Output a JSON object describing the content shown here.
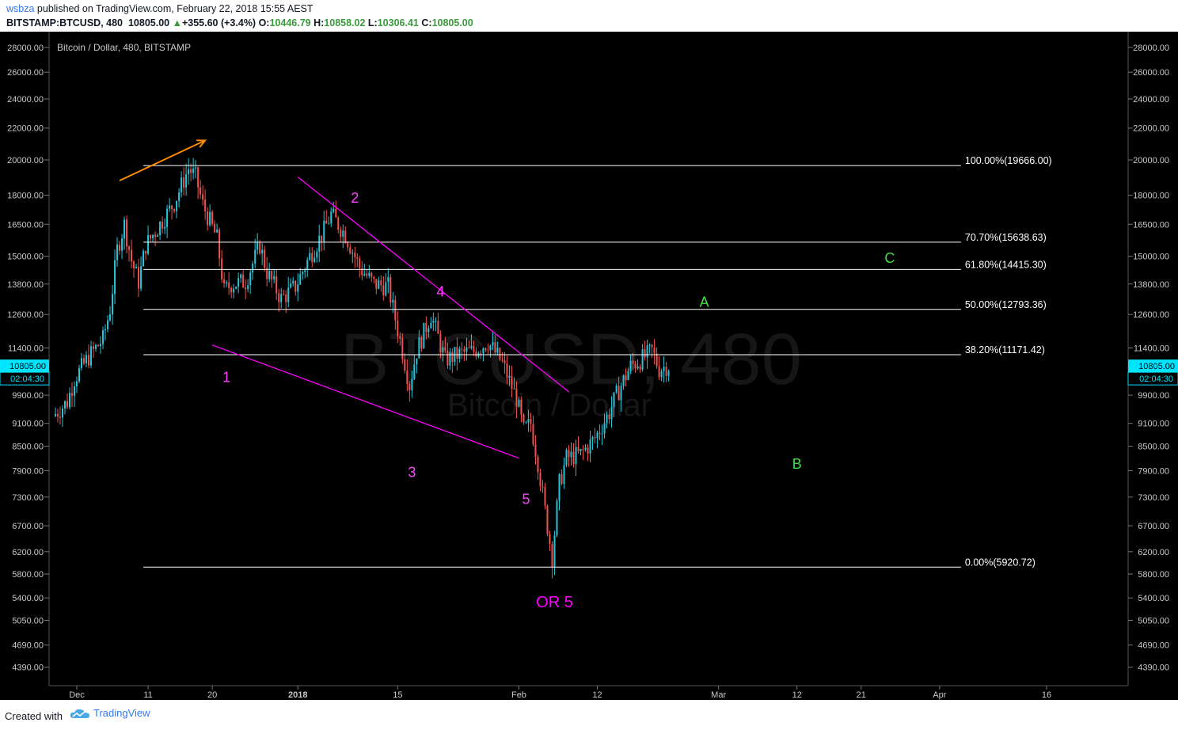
{
  "header": {
    "publisher": "wsbza",
    "published_text": "published on TradingView.com, February 22, 2018 15:55 AEST",
    "symbol": "BITSTAMP:BTCUSD, 480",
    "last": "10805.00",
    "change": "+355.60 (+3.4%)",
    "o_label": "O:",
    "o": "10446.79",
    "h_label": "H:",
    "h": "10858.02",
    "l_label": "L:",
    "l": "10306.41",
    "c_label": "C:",
    "c": "10805.00"
  },
  "footer": {
    "created_with": "Created with",
    "brand": "TradingView"
  },
  "chart_data": {
    "type": "candlestick",
    "title": "Bitcoin / Dollar, 480, BITSTAMP",
    "watermark_symbol": "BTCUSD, 480",
    "watermark_name": "Bitcoin / Dollar",
    "y_scale": "log",
    "ylim": [
      4100,
      30000
    ],
    "y_ticks": [
      4390,
      4690,
      5050,
      5400,
      5800,
      6200,
      6700,
      7300,
      7900,
      8500,
      9100,
      9900,
      11400,
      12600,
      13800,
      15000,
      16500,
      18000,
      20000,
      22000,
      24000,
      26000,
      28000
    ],
    "y_tick_labels": [
      "4390.00",
      "4690.00",
      "5050.00",
      "5400.00",
      "5800.00",
      "6200.00",
      "6700.00",
      "7300.00",
      "7900.00",
      "8500.00",
      "9100.00",
      "9900.00",
      "11400.00",
      "12600.00",
      "13800.00",
      "15000.00",
      "16500.00",
      "18000.00",
      "20000.00",
      "22000.00",
      "24000.00",
      "26000.00",
      "28000.00"
    ],
    "xlim": [
      "2017-11-28",
      "2018-04-25"
    ],
    "x_ticks": [
      {
        "date": "2017-12-01",
        "label": "Dec"
      },
      {
        "date": "2017-12-11",
        "label": "11"
      },
      {
        "date": "2017-12-20",
        "label": "20"
      },
      {
        "date": "2018-01-01",
        "label": "2018",
        "bold": true
      },
      {
        "date": "2018-01-15",
        "label": "15"
      },
      {
        "date": "2018-02-01",
        "label": "Feb"
      },
      {
        "date": "2018-02-12",
        "label": "12"
      },
      {
        "date": "2018-03-01",
        "label": "Mar"
      },
      {
        "date": "2018-03-12",
        "label": "12"
      },
      {
        "date": "2018-03-21",
        "label": "21"
      },
      {
        "date": "2018-04-01",
        "label": "Apr"
      },
      {
        "date": "2018-04-16",
        "label": "16"
      }
    ],
    "price_tag": {
      "value": 10805,
      "label": "10805.00",
      "countdown": "02:04:30"
    },
    "price_path": [
      [
        "2017-11-28",
        9300
      ],
      [
        "2017-11-30",
        9700
      ],
      [
        "2017-12-01",
        10400
      ],
      [
        "2017-12-03",
        11100
      ],
      [
        "2017-12-05",
        11700
      ],
      [
        "2017-12-06",
        12800
      ],
      [
        "2017-12-07",
        15300
      ],
      [
        "2017-12-08",
        16500
      ],
      [
        "2017-12-09",
        14800
      ],
      [
        "2017-12-10",
        13900
      ],
      [
        "2017-12-11",
        15500
      ],
      [
        "2017-12-13",
        16500
      ],
      [
        "2017-12-15",
        17600
      ],
      [
        "2017-12-17",
        19500
      ],
      [
        "2017-12-18",
        19000
      ],
      [
        "2017-12-19",
        17500
      ],
      [
        "2017-12-21",
        15800
      ],
      [
        "2017-12-22",
        13500
      ],
      [
        "2017-12-23",
        13800
      ],
      [
        "2017-12-25",
        13900
      ],
      [
        "2017-12-27",
        15500
      ],
      [
        "2017-12-28",
        14300
      ],
      [
        "2017-12-30",
        13200
      ],
      [
        "2018-01-01",
        13700
      ],
      [
        "2018-01-03",
        15000
      ],
      [
        "2018-01-05",
        16200
      ],
      [
        "2018-01-06",
        17000
      ],
      [
        "2018-01-08",
        16000
      ],
      [
        "2018-01-10",
        14500
      ],
      [
        "2018-01-12",
        13800
      ],
      [
        "2018-01-14",
        13700
      ],
      [
        "2018-01-16",
        11300
      ],
      [
        "2018-01-17",
        10200
      ],
      [
        "2018-01-18",
        11300
      ],
      [
        "2018-01-20",
        12600
      ],
      [
        "2018-01-22",
        11000
      ],
      [
        "2018-01-24",
        11200
      ],
      [
        "2018-01-26",
        11300
      ],
      [
        "2018-01-28",
        11600
      ],
      [
        "2018-01-30",
        10900
      ],
      [
        "2018-02-01",
        9800
      ],
      [
        "2018-02-02",
        8900
      ],
      [
        "2018-02-03",
        9100
      ],
      [
        "2018-02-04",
        8100
      ],
      [
        "2018-02-05",
        7000
      ],
      [
        "2018-02-06",
        6100
      ],
      [
        "2018-02-07",
        7600
      ],
      [
        "2018-02-08",
        8200
      ],
      [
        "2018-02-10",
        8300
      ],
      [
        "2018-02-12",
        8700
      ],
      [
        "2018-02-14",
        9400
      ],
      [
        "2018-02-15",
        9900
      ],
      [
        "2018-02-17",
        10800
      ],
      [
        "2018-02-19",
        11100
      ],
      [
        "2018-02-20",
        11300
      ],
      [
        "2018-02-21",
        10700
      ],
      [
        "2018-02-22",
        10805
      ]
    ],
    "fib_levels": [
      {
        "pct": "100.00%",
        "value": 19666.0,
        "label": "100.00%(19666.00)"
      },
      {
        "pct": "70.70%",
        "value": 15638.63,
        "label": "70.70%(15638.63)"
      },
      {
        "pct": "61.80%",
        "value": 14415.3,
        "label": "61.80%(14415.30)"
      },
      {
        "pct": "50.00%",
        "value": 12793.36,
        "label": "50.00%(12793.36)"
      },
      {
        "pct": "38.20%",
        "value": 11171.42,
        "label": "38.20%(11171.42)"
      },
      {
        "pct": "0.00%",
        "value": 5920.72,
        "label": "0.00%(5920.72)"
      }
    ],
    "fib_x_range": [
      "2017-12-11",
      "2018-04-04"
    ],
    "trendlines": [
      {
        "name": "upper-wedge-line",
        "color": "#ff00ff",
        "from": [
          "2018-01-01",
          19000
        ],
        "to": [
          "2018-02-08",
          10000
        ]
      },
      {
        "name": "lower-wedge-line",
        "color": "#ff00ff",
        "from": [
          "2017-12-20",
          11500
        ],
        "to": [
          "2018-02-01",
          8200
        ]
      },
      {
        "name": "arrow-line",
        "color": "#ff8c00",
        "from": [
          "2017-12-07",
          18800
        ],
        "to": [
          "2017-12-19",
          21200
        ]
      }
    ],
    "annotations": [
      {
        "text": "1",
        "color": "#ff40ff",
        "at": [
          "2017-12-22",
          10300
        ]
      },
      {
        "text": "2",
        "color": "#ff40ff",
        "at": [
          "2018-01-09",
          17600
        ]
      },
      {
        "text": "3",
        "color": "#ff40ff",
        "at": [
          "2018-01-17",
          7750
        ]
      },
      {
        "text": "4",
        "color": "#ff40ff",
        "at": [
          "2018-01-21",
          13300
        ]
      },
      {
        "text": "5",
        "color": "#ff40ff",
        "at": [
          "2018-02-02",
          7150
        ]
      },
      {
        "text": "OR 5",
        "color": "#ff00ff",
        "at": [
          "2018-02-06",
          5250
        ]
      },
      {
        "text": "A",
        "color": "#44dd44",
        "at": [
          "2018-02-27",
          12900
        ]
      },
      {
        "text": "B",
        "color": "#44dd44",
        "at": [
          "2018-03-12",
          7950
        ]
      },
      {
        "text": "C",
        "color": "#44dd44",
        "at": [
          "2018-03-25",
          14700
        ]
      }
    ],
    "colors": {
      "background": "#000000",
      "up": "#26c6da",
      "down": "#ef5350",
      "fib_line": "#ffffff",
      "axis_text": "#c8c8c8",
      "price_tag_bg": "#00e5ff"
    }
  }
}
